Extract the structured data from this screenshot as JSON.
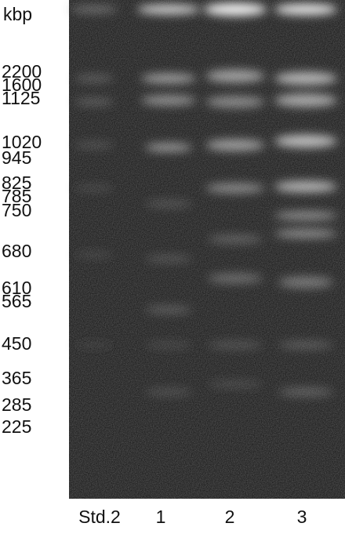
{
  "size_labels": {
    "unit": "kbp",
    "values": [
      "2200",
      "1600",
      "1125",
      "1020",
      "945",
      "825",
      "785",
      "750",
      "680",
      "610",
      "565",
      "450",
      "365",
      "285",
      "225"
    ]
  },
  "lanes": [
    "Std.2",
    "1",
    "2",
    "3"
  ]
}
